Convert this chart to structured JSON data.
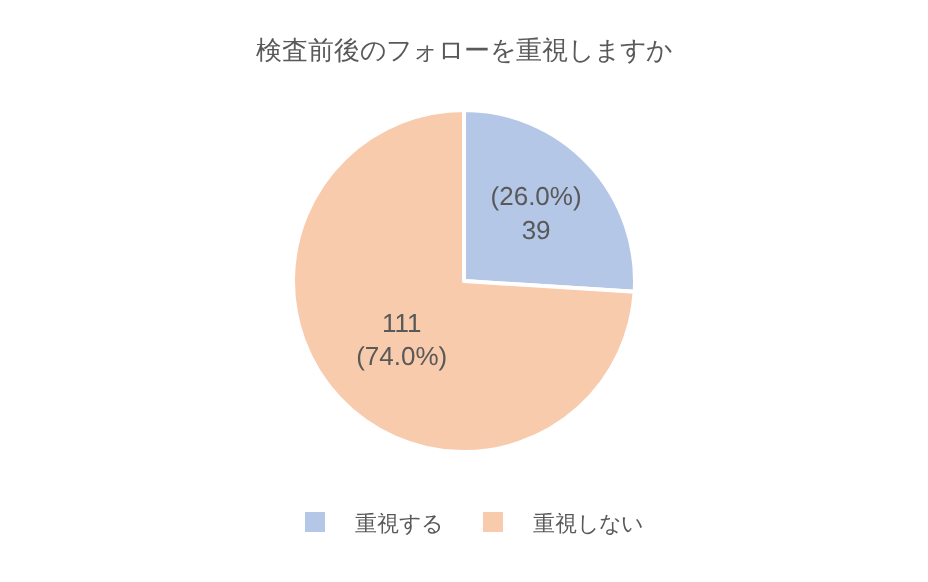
{
  "chart_data": {
    "type": "pie",
    "title": "検査前後のフォローを重視しますか",
    "categories": [
      "重視する",
      "重視しない"
    ],
    "values": [
      39,
      111
    ],
    "colors": [
      "#b4c7e7",
      "#f8cbad"
    ],
    "value_labels": [
      "(26.0%)\n39",
      "111\n(74.0%)"
    ],
    "legend": "bottom"
  }
}
